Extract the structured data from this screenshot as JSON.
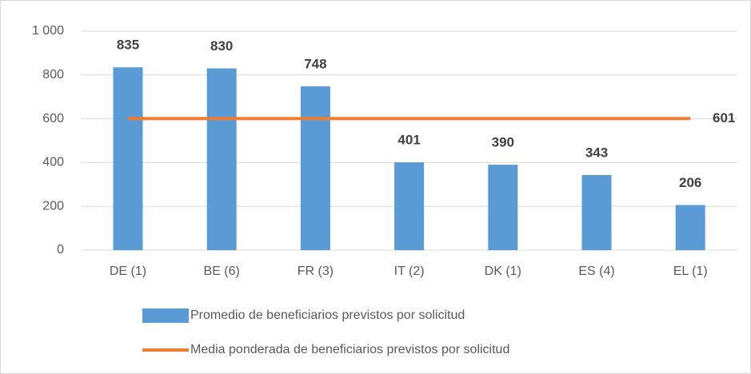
{
  "chart_data": {
    "type": "bar",
    "categories": [
      "DE (1)",
      "BE (6)",
      "FR (3)",
      "IT (2)",
      "DK (1)",
      "ES (4)",
      "EL (1)"
    ],
    "series": [
      {
        "name": "Promedio de beneficiarios previstos por solicitud",
        "type": "bar",
        "color": "#5b9bd5",
        "values": [
          835,
          830,
          748,
          401,
          390,
          343,
          206
        ]
      },
      {
        "name": "Media ponderada de beneficiarios previstos por solicitud",
        "type": "line",
        "color": "#ed7d31",
        "values": [
          601,
          601,
          601,
          601,
          601,
          601,
          601
        ]
      }
    ],
    "ylim": [
      0,
      1000
    ],
    "yticks": [
      0,
      200,
      400,
      600,
      800,
      {
        "value": 1000,
        "label": "1 000"
      }
    ],
    "grid": true
  }
}
